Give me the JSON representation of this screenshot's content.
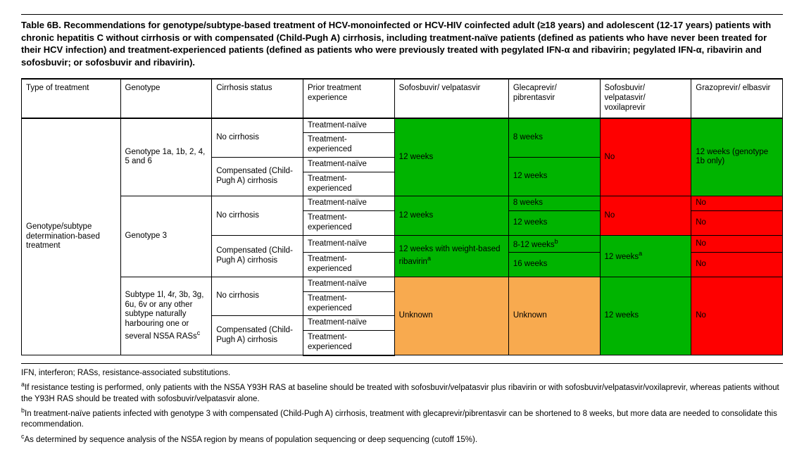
{
  "title": "Table 6B. Recommendations for genotype/subtype-based treatment of HCV-monoinfected or HCV-HIV coinfected adult (≥18 years) and adolescent (12-17 years) patients with chronic hepatitis C without cirrhosis or with compensated (Child-Pugh A) cirrhosis, including treatment-naïve patients (defined as patients who have never been treated for their HCV infection) and treatment-experienced patients (defined as patients who were previously treated with pegylated IFN-α and ribavirin; pegylated IFN-α, ribavirin and sofosbuvir; or sofosbuvir and ribavirin).",
  "headers": {
    "type_of_treatment": "Type of treatment",
    "genotype": "Genotype",
    "cirrhosis_status": "Cirrhosis status",
    "prior_treatment": "Prior treatment experience",
    "sof_vel": "Sofosbuvir/ velpatasvir",
    "gle_pib": "Glecaprevir/ pibrentasvir",
    "sof_vel_vox": "Sofosbuvir/ velpatasvir/ voxilaprevir",
    "graz_elb": "Grazoprevir/ elbasvir"
  },
  "row_label": "Genotype/subtype determination-based treatment",
  "genotype_groups": {
    "g1": "Genotype 1a, 1b, 2, 4, 5 and 6",
    "g3": "Genotype 3",
    "gsub": "Subtype 1l, 4r, 3b, 3g, 6u, 6v or any other subtype naturally harbouring one or several NS5A RASs"
  },
  "gsub_sup": "c",
  "cirrhosis": {
    "none": "No cirrhosis",
    "comp": "Compensated (Child-Pugh A) cirrhosis"
  },
  "experience": {
    "naive": "Treatment-naïve",
    "exp": "Treatment-experienced"
  },
  "cells": {
    "g1_sof_vel": "12 weeks",
    "g1_gle_pib_nc": "8 weeks",
    "g1_gle_pib_comp": "12 weeks",
    "g1_sof_vel_vox": "No",
    "g1_graz_elb": "12 weeks (genotype 1b only)",
    "g3_sof_vel_nc": "12 weeks",
    "g3_sof_vel_comp": "12 weeks with weight-based ribavirin",
    "g3_sof_vel_comp_sup": "a",
    "g3_gle_pib_nc_naive": "8 weeks",
    "g3_gle_pib_nc_exp": "12 weeks",
    "g3_gle_pib_comp_naive": "8-12 weeks",
    "g3_gle_pib_comp_naive_sup": "b",
    "g3_gle_pib_comp_exp": "16 weeks",
    "g3_svv_nc": "No",
    "g3_svv_comp": "12 weeks",
    "g3_svv_comp_sup": "a",
    "g3_graz_elb": "No",
    "gsub_sof_vel": "Unknown",
    "gsub_gle_pib": "Unknown",
    "gsub_svv": "12 weeks",
    "gsub_graz_elb": "No"
  },
  "colors": {
    "green": "#00b400",
    "red": "#fe0000",
    "orange": "#f8aa4f"
  },
  "footnotes": {
    "abbr": "IFN, interferon; RASs, resistance-associated substitutions.",
    "a_sup": "a",
    "a": "If resistance testing is performed, only patients with the NS5A Y93H RAS at baseline should be treated with sofosbuvir/velpatasvir plus ribavirin or with sofosbuvir/velpatasvir/voxilaprevir, whereas patients without the Y93H RAS should be treated with sofosbuvir/velpatasvir alone.",
    "b_sup": "b",
    "b": "In treatment-naïve patients infected with genotype 3 with compensated (Child-Pugh A) cirrhosis, treatment with glecaprevir/pibrentasvir can be shortened to 8 weeks, but more data are needed to consolidate this recommendation.",
    "c_sup": "c",
    "c": "As determined by sequence analysis of the NS5A region by means of population sequencing or deep sequencing (cutoff 15%)."
  }
}
